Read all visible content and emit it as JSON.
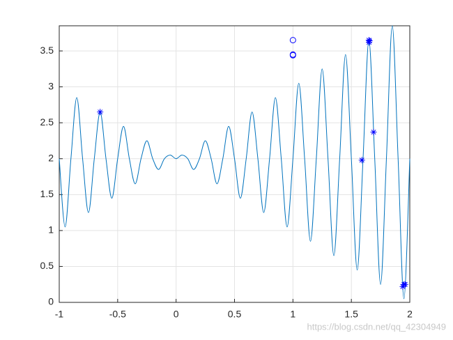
{
  "chart_data": {
    "type": "line",
    "xlim": [
      -1,
      2
    ],
    "xticks": [
      -1,
      -0.5,
      0,
      0.5,
      1,
      1.5,
      2
    ],
    "ylim": [
      0,
      3.85
    ],
    "yticks": [
      0,
      0.5,
      1,
      1.5,
      2,
      2.5,
      3,
      3.5
    ],
    "grid": true,
    "watermark": "https://blog.csdn.net/qq_42304949",
    "series": [
      {
        "color": "#0072bd",
        "marker": "none",
        "x": [
          -1,
          -0.95,
          -0.9,
          -0.85,
          -0.8,
          -0.75,
          -0.7,
          -0.65,
          -0.6,
          -0.55,
          -0.5,
          -0.45,
          -0.4,
          -0.35,
          -0.3,
          -0.25,
          -0.2,
          -0.15,
          -0.1,
          -0.05,
          0,
          0.05,
          0.1,
          0.15,
          0.2,
          0.25,
          0.3,
          0.35,
          0.4,
          0.45,
          0.5,
          0.55,
          0.6,
          0.65,
          0.7,
          0.75,
          0.8,
          0.85,
          0.9,
          0.95,
          1,
          1.05,
          1.1,
          1.15,
          1.2,
          1.25,
          1.3,
          1.35,
          1.4,
          1.45,
          1.5,
          1.55,
          1.6,
          1.65,
          1.7,
          1.75,
          1.8,
          1.85,
          1.9,
          1.95,
          2
        ],
        "values": [
          2,
          1.05,
          2,
          2.85,
          2,
          1.25,
          2,
          2.65,
          2,
          1.45,
          2,
          2.45,
          2,
          1.65,
          2,
          2.25,
          2,
          1.85,
          2,
          2.05,
          2,
          2.05,
          2,
          1.85,
          2,
          2.25,
          2,
          1.65,
          2,
          2.45,
          2,
          1.45,
          2,
          2.65,
          2,
          1.25,
          2,
          2.85,
          2,
          1.05,
          2,
          3.05,
          2,
          0.85,
          2,
          3.25,
          2,
          0.65,
          2,
          3.45,
          2,
          0.45,
          2,
          3.65,
          2,
          0.25,
          2,
          3.85,
          2,
          0.05,
          2
        ]
      },
      {
        "color": "#0000ff",
        "marker": "*",
        "x": [
          -0.65,
          1.65,
          1.651,
          1.655,
          1.59,
          1.69,
          1.95,
          1.94,
          1.96
        ],
        "values": [
          2.65,
          3.65,
          3.62,
          3.64,
          1.98,
          2.37,
          0.25,
          0.22,
          0.25
        ]
      },
      {
        "color": "#0000ff",
        "marker": "o",
        "x": [
          1.0,
          1.0,
          1.0
        ],
        "values": [
          3.65,
          3.45,
          3.44
        ]
      }
    ]
  }
}
